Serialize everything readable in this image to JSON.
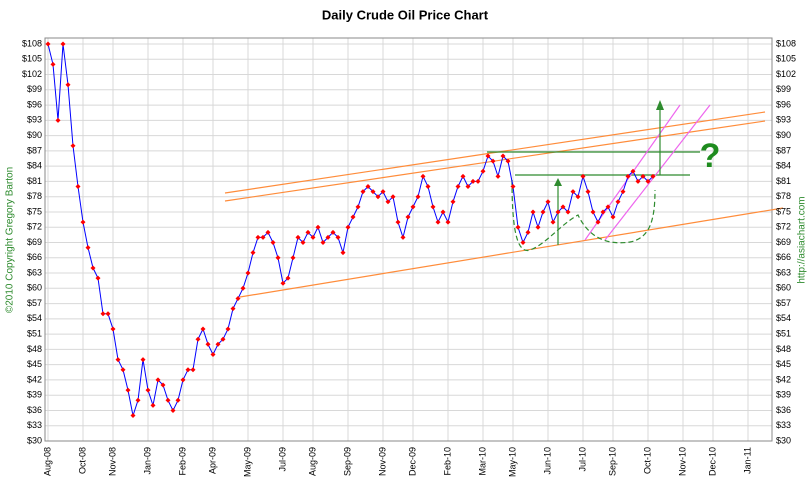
{
  "chart_data": {
    "type": "line",
    "title": "Daily Crude Oil Price Chart",
    "left_note": "©2010 Copyright Gregory Barton",
    "right_note": "http://asiachart.com",
    "annotation": "?",
    "series": [
      {
        "name": "Crude Oil",
        "color": "#0000ff",
        "marker_color": "#ff0000",
        "values": [
          108,
          104,
          93,
          108,
          100,
          88,
          80,
          73,
          68,
          64,
          62,
          55,
          55,
          52,
          46,
          44,
          40,
          35,
          38,
          46,
          40,
          37,
          42,
          41,
          38,
          36,
          38,
          42,
          44,
          44,
          50,
          52,
          49,
          47,
          49,
          50,
          52,
          56,
          58,
          60,
          63,
          67,
          70,
          70,
          71,
          69,
          66,
          61,
          62,
          66,
          70,
          69,
          71,
          70,
          72,
          69,
          70,
          71,
          70,
          67,
          72,
          74,
          76,
          79,
          80,
          79,
          78,
          79,
          77,
          78,
          73,
          70,
          74,
          76,
          78,
          82,
          80,
          76,
          73,
          75,
          73,
          77,
          80,
          82,
          80,
          81,
          81,
          83,
          86,
          85,
          82,
          86,
          85,
          80,
          72,
          69,
          71,
          75,
          72,
          75,
          77,
          73,
          75,
          76,
          75,
          79,
          78,
          82,
          79,
          75,
          73,
          75,
          76,
          74,
          77,
          79,
          82,
          83,
          81,
          82,
          81,
          82
        ]
      }
    ],
    "xlim": [
      0,
      140
    ],
    "xticks": [
      {
        "value": 0,
        "label": "Aug-08"
      },
      {
        "value": 7,
        "label": "Oct-08"
      },
      {
        "value": 13,
        "label": "Nov-08"
      },
      {
        "value": 20,
        "label": "Jan-09"
      },
      {
        "value": 27,
        "label": "Feb-09"
      },
      {
        "value": 33,
        "label": "Apr-09"
      },
      {
        "value": 40,
        "label": "May-09"
      },
      {
        "value": 47,
        "label": "Jul-09"
      },
      {
        "value": 53,
        "label": "Aug-09"
      },
      {
        "value": 60,
        "label": "Sep-09"
      },
      {
        "value": 67,
        "label": "Nov-09"
      },
      {
        "value": 73,
        "label": "Dec-09"
      },
      {
        "value": 80,
        "label": "Feb-10"
      },
      {
        "value": 87,
        "label": "Mar-10"
      },
      {
        "value": 93,
        "label": "May-10"
      },
      {
        "value": 100,
        "label": "Jun-10"
      },
      {
        "value": 107,
        "label": "Jul-10"
      },
      {
        "value": 113,
        "label": "Sep-10"
      },
      {
        "value": 120,
        "label": "Oct-10"
      },
      {
        "value": 127,
        "label": "Nov-10"
      },
      {
        "value": 133,
        "label": "Dec-10"
      },
      {
        "value": 140,
        "label": "Jan-11"
      }
    ],
    "ylim": [
      30,
      108
    ],
    "yticks": [
      {
        "value": 30,
        "label": "$30"
      },
      {
        "value": 33,
        "label": "$33"
      },
      {
        "value": 36,
        "label": "$36"
      },
      {
        "value": 39,
        "label": "$39"
      },
      {
        "value": 42,
        "label": "$42"
      },
      {
        "value": 45,
        "label": "$45"
      },
      {
        "value": 48,
        "label": "$48"
      },
      {
        "value": 51,
        "label": "$51"
      },
      {
        "value": 54,
        "label": "$54"
      },
      {
        "value": 57,
        "label": "$57"
      },
      {
        "value": 60,
        "label": "$60"
      },
      {
        "value": 63,
        "label": "$63"
      },
      {
        "value": 66,
        "label": "$66"
      },
      {
        "value": 69,
        "label": "$69"
      },
      {
        "value": 72,
        "label": "$72"
      },
      {
        "value": 75,
        "label": "$75"
      },
      {
        "value": 78,
        "label": "$78"
      },
      {
        "value": 81,
        "label": "$81"
      },
      {
        "value": 84,
        "label": "$84"
      },
      {
        "value": 87,
        "label": "$87"
      },
      {
        "value": 90,
        "label": "$90"
      },
      {
        "value": 93,
        "label": "$93"
      },
      {
        "value": 96,
        "label": "$96"
      },
      {
        "value": 99,
        "label": "$99"
      },
      {
        "value": 102,
        "label": "$102"
      },
      {
        "value": 105,
        "label": "$105"
      },
      {
        "value": 108,
        "label": "$108"
      }
    ],
    "grid": true
  }
}
